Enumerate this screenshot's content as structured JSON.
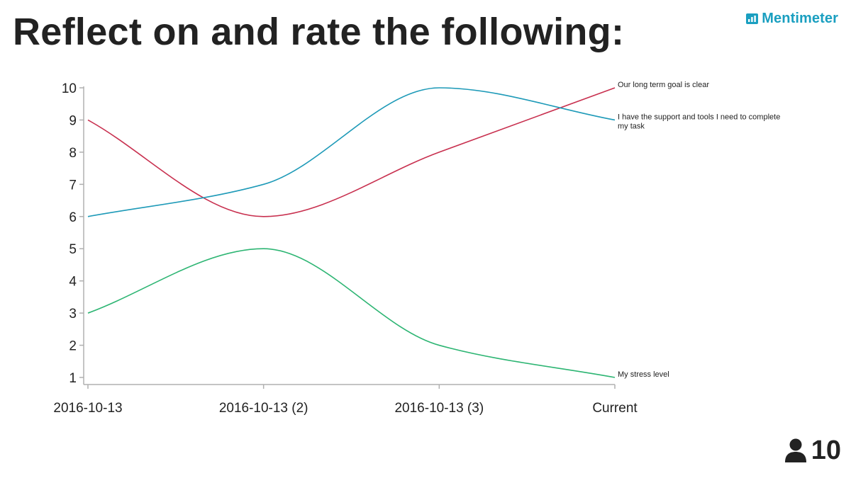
{
  "header": {
    "title": "Reflect on and rate the following:",
    "brand": "Mentimeter"
  },
  "participants": {
    "count": "10",
    "icon": "person-icon"
  },
  "colors": {
    "axis": "#b0b0b0",
    "brand": "#1a9fc0"
  },
  "chart_data": {
    "type": "line",
    "categories": [
      "2016-10-13",
      "2016-10-13 (2)",
      "2016-10-13 (3)",
      "Current"
    ],
    "y_ticks": [
      "1",
      "2",
      "3",
      "4",
      "5",
      "6",
      "7",
      "8",
      "9",
      "10"
    ],
    "ylim": [
      1,
      10
    ],
    "grid": false,
    "legend": "labels at line ends (right)",
    "series": [
      {
        "name": "Our long term goal is clear",
        "color": "#c8304f",
        "values": [
          9,
          6,
          8,
          10
        ]
      },
      {
        "name": "I have the support and tools I need to complete my task",
        "color": "#1e9ab8",
        "values": [
          6,
          7,
          10,
          9
        ]
      },
      {
        "name": "My stress level",
        "color": "#2db573",
        "values": [
          3,
          5,
          2,
          1
        ]
      }
    ]
  }
}
